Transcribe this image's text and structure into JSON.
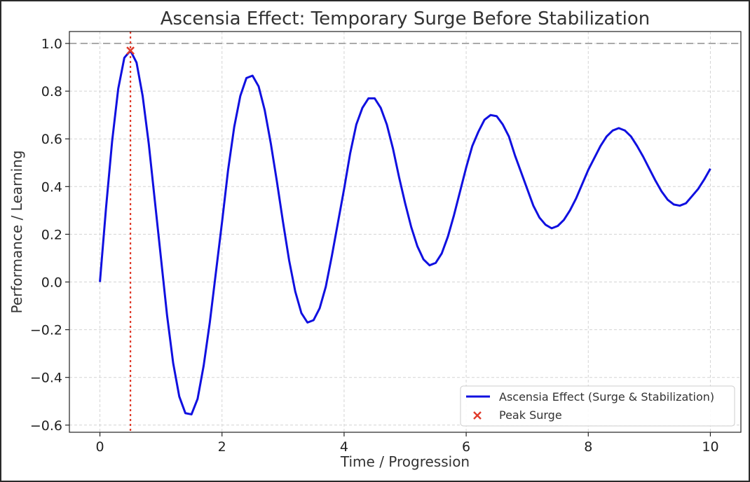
{
  "chart_data": {
    "type": "line",
    "title": "Ascensia Effect: Temporary Surge Before Stabilization",
    "xlabel": "Time / Progression",
    "ylabel": "Performance / Learning",
    "xlim": [
      -0.5,
      10.5
    ],
    "ylim": [
      -0.63,
      1.05
    ],
    "xticks": [
      0,
      2,
      4,
      6,
      8,
      10
    ],
    "yticks": [
      -0.6,
      -0.4,
      -0.2,
      0.0,
      0.2,
      0.4,
      0.6,
      0.8,
      1.0
    ],
    "ytick_labels": [
      "−0.6",
      "−0.4",
      "−0.2",
      "0.0",
      "0.2",
      "0.4",
      "0.6",
      "0.8",
      "1.0"
    ],
    "xtick_labels": [
      "0",
      "2",
      "4",
      "6",
      "8",
      "10"
    ],
    "grid": true,
    "legend_position": "bottom-right",
    "reference_line_y": 1.0,
    "peak_x_line": 0.5,
    "series": [
      {
        "name": "Ascensia Effect (Surge & Stabilization)",
        "color": "#1010e0",
        "x": [
          0,
          0.1,
          0.2,
          0.3,
          0.4,
          0.5,
          0.6,
          0.7,
          0.8,
          0.9,
          1.0,
          1.1,
          1.2,
          1.3,
          1.4,
          1.5,
          1.6,
          1.7,
          1.8,
          1.9,
          2.0,
          2.1,
          2.2,
          2.3,
          2.4,
          2.5,
          2.6,
          2.7,
          2.8,
          2.9,
          3.0,
          3.1,
          3.2,
          3.3,
          3.4,
          3.5,
          3.6,
          3.7,
          3.8,
          3.9,
          4.0,
          4.1,
          4.2,
          4.3,
          4.4,
          4.5,
          4.6,
          4.7,
          4.8,
          4.9,
          5.0,
          5.1,
          5.2,
          5.3,
          5.4,
          5.5,
          5.6,
          5.7,
          5.8,
          5.9,
          6.0,
          6.1,
          6.2,
          6.3,
          6.4,
          6.5,
          6.6,
          6.7,
          6.8,
          6.9,
          7.0,
          7.1,
          7.2,
          7.3,
          7.4,
          7.5,
          7.6,
          7.7,
          7.8,
          7.9,
          8.0,
          8.1,
          8.2,
          8.3,
          8.4,
          8.5,
          8.6,
          8.7,
          8.8,
          8.9,
          9.0,
          9.1,
          9.2,
          9.3,
          9.4,
          9.5,
          9.6,
          9.7,
          9.8,
          9.9,
          10.0
        ],
        "values": [
          0.0,
          0.31,
          0.59,
          0.81,
          0.94,
          0.97,
          0.92,
          0.78,
          0.58,
          0.34,
          0.1,
          -0.14,
          -0.34,
          -0.48,
          -0.55,
          -0.555,
          -0.49,
          -0.35,
          -0.17,
          0.04,
          0.25,
          0.47,
          0.65,
          0.78,
          0.855,
          0.865,
          0.82,
          0.72,
          0.58,
          0.42,
          0.25,
          0.09,
          -0.04,
          -0.13,
          -0.17,
          -0.16,
          -0.11,
          -0.02,
          0.11,
          0.25,
          0.39,
          0.54,
          0.66,
          0.73,
          0.77,
          0.77,
          0.73,
          0.66,
          0.56,
          0.44,
          0.33,
          0.23,
          0.15,
          0.095,
          0.07,
          0.08,
          0.12,
          0.19,
          0.28,
          0.38,
          0.48,
          0.57,
          0.63,
          0.68,
          0.7,
          0.695,
          0.66,
          0.61,
          0.53,
          0.46,
          0.39,
          0.32,
          0.27,
          0.24,
          0.225,
          0.235,
          0.26,
          0.3,
          0.35,
          0.41,
          0.47,
          0.52,
          0.57,
          0.61,
          0.635,
          0.645,
          0.635,
          0.61,
          0.57,
          0.525,
          0.475,
          0.425,
          0.38,
          0.345,
          0.325,
          0.32,
          0.33,
          0.36,
          0.39,
          0.43,
          0.475
        ]
      }
    ],
    "markers": [
      {
        "name": "Peak Surge",
        "color": "#e03a2a",
        "shape": "x",
        "x": 0.5,
        "y": 0.97
      }
    ]
  }
}
